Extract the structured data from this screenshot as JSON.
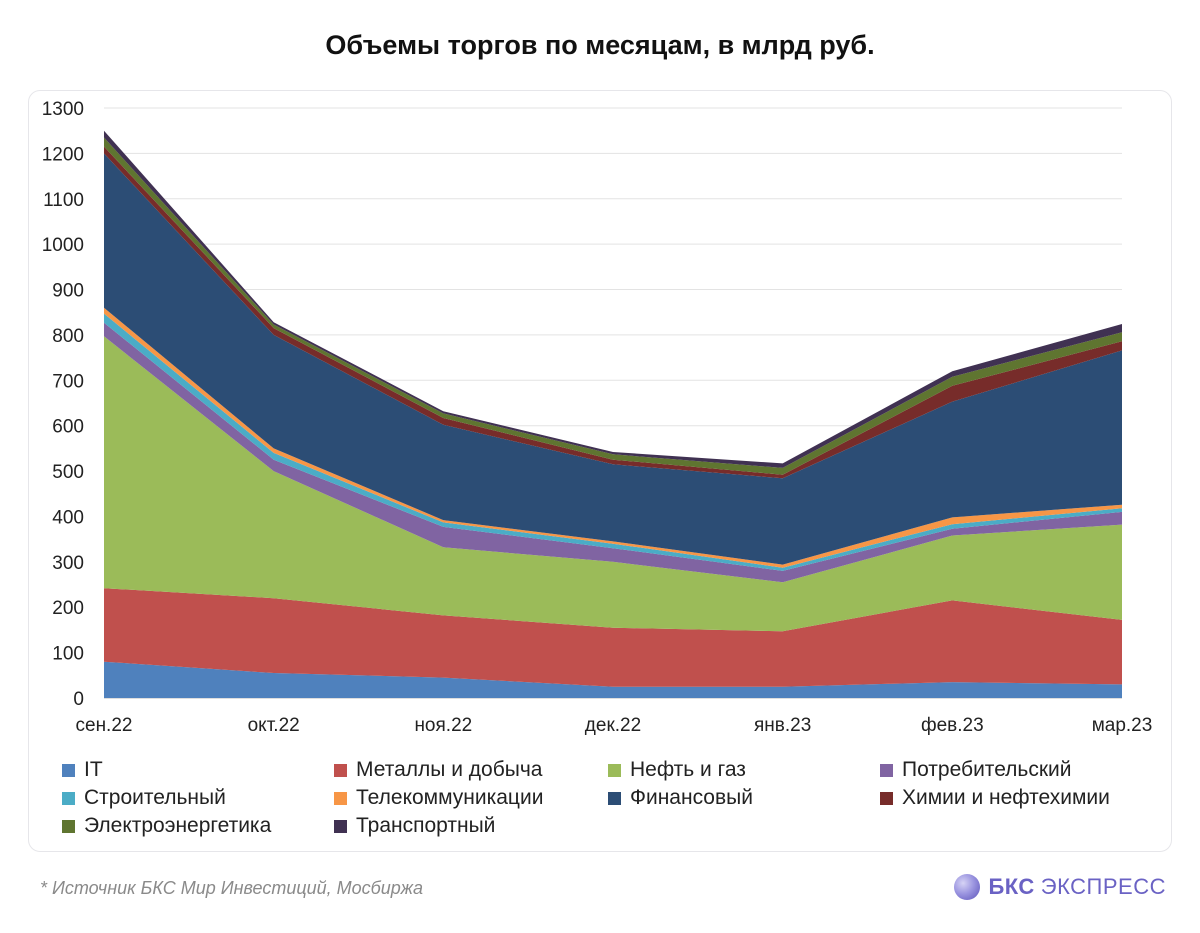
{
  "header": {
    "title": "Объемы торгов по месяцам, в млрд руб."
  },
  "footer": {
    "footnote": "*  Источник БКС Мир Инвестиций, Мосбиржа",
    "brand_primary": "БКС",
    "brand_secondary": "ЭКСПРЕСС"
  },
  "chart_data": {
    "type": "area",
    "stacked": true,
    "title": "Объемы торгов по месяцам, в млрд руб.",
    "categories": [
      "сен.22",
      "окт.22",
      "ноя.22",
      "дек.22",
      "янв.23",
      "фев.23",
      "мар.23"
    ],
    "ylim": [
      0,
      1300
    ],
    "yticks": [
      0,
      100,
      200,
      300,
      400,
      500,
      600,
      700,
      800,
      900,
      1000,
      1100,
      1200,
      1300
    ],
    "grid": true,
    "legend_position": "bottom",
    "series": [
      {
        "name": "IT",
        "color": "#4f81bd",
        "values": [
          80,
          55,
          45,
          25,
          25,
          35,
          30
        ]
      },
      {
        "name": "Металлы и добыча",
        "color": "#c0504d",
        "values": [
          162,
          165,
          137,
          130,
          122,
          180,
          142
        ]
      },
      {
        "name": "Нефть и газ",
        "color": "#9bbb59",
        "values": [
          555,
          280,
          150,
          145,
          108,
          143,
          210
        ]
      },
      {
        "name": "Потребительский",
        "color": "#8064a2",
        "values": [
          30,
          25,
          45,
          30,
          25,
          15,
          28
        ]
      },
      {
        "name": "Строительный",
        "color": "#4bacc6",
        "values": [
          20,
          15,
          10,
          10,
          7,
          10,
          8
        ]
      },
      {
        "name": "Телекоммуникации",
        "color": "#f79646",
        "values": [
          13,
          10,
          5,
          5,
          7,
          15,
          8
        ]
      },
      {
        "name": "Финансовый",
        "color": "#2c4d75",
        "values": [
          340,
          250,
          210,
          170,
          190,
          255,
          340
        ]
      },
      {
        "name": "Химии и нефтехимии",
        "color": "#772c2a",
        "values": [
          15,
          15,
          15,
          10,
          8,
          35,
          20
        ]
      },
      {
        "name": "Электроэнергетика",
        "color": "#5f7530",
        "values": [
          20,
          8,
          10,
          12,
          15,
          20,
          20
        ]
      },
      {
        "name": "Транспортный",
        "color": "#403152",
        "values": [
          15,
          5,
          5,
          5,
          10,
          12,
          18
        ]
      }
    ]
  }
}
